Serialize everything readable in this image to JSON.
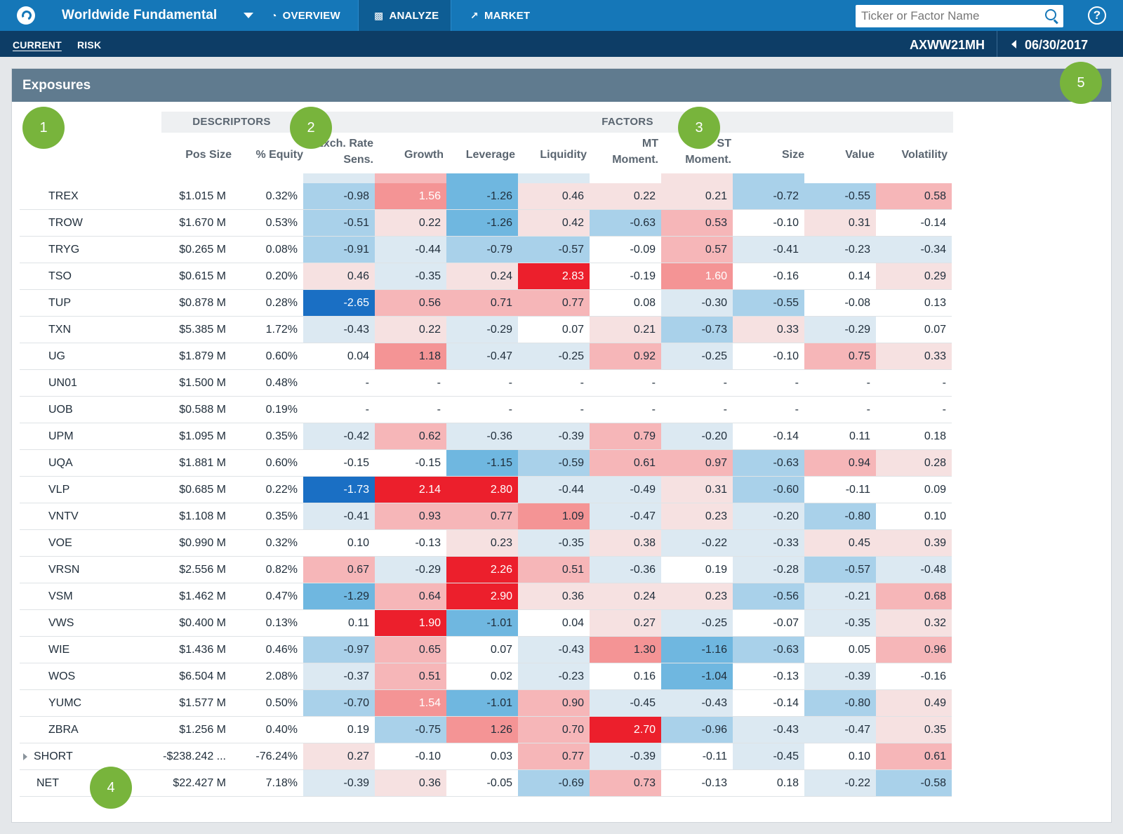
{
  "app": {
    "title": "Worldwide Fundamental",
    "nav": [
      {
        "label": "OVERVIEW",
        "icon": "dashboard-icon"
      },
      {
        "label": "ANALYZE",
        "icon": "bar-chart-icon"
      },
      {
        "label": "MARKET",
        "icon": "line-chart-icon"
      }
    ],
    "search_placeholder": "Ticker or Factor Name",
    "help_label": "?"
  },
  "subnav": {
    "tabs": [
      "CURRENT",
      "RISK"
    ],
    "account": "AXWW21MH",
    "date": "06/30/2017"
  },
  "panel": {
    "title": "Exposures",
    "groups": {
      "descriptors": "DESCRIPTORS",
      "factors": "FACTORS"
    },
    "columns": [
      "",
      "Pos Size",
      "% Equity",
      "Exch. Rate Sens.",
      "Growth",
      "Leverage",
      "Liquidity",
      "MT Moment.",
      "ST Moment.",
      "Size",
      "Value",
      "Volatility"
    ],
    "callouts": [
      "1",
      "2",
      "3",
      "4",
      "5"
    ]
  },
  "scale": {
    "neg_strong": "#1a6fc4",
    "neg_mid": "#6fb7e0",
    "neg_light": "#a9d1ea",
    "neg_faint": "#dce9f2",
    "pos_faint": "#f6e1e1",
    "pos_light": "#f6b6b8",
    "pos_mid": "#f49495",
    "pos_strong": "#ec1f2c"
  },
  "rows": [
    {
      "name": "TREX",
      "pos": "$1.015 M",
      "eq": "0.32%",
      "v": [
        "-0.98",
        "1.56",
        "-1.26",
        "0.46",
        "0.22",
        "0.21",
        "-0.72",
        "-0.55",
        "0.58"
      ]
    },
    {
      "name": "TROW",
      "pos": "$1.670 M",
      "eq": "0.53%",
      "v": [
        "-0.51",
        "0.22",
        "-1.26",
        "0.42",
        "-0.63",
        "0.53",
        "-0.10",
        "0.31",
        "-0.14"
      ]
    },
    {
      "name": "TRYG",
      "pos": "$0.265 M",
      "eq": "0.08%",
      "v": [
        "-0.91",
        "-0.44",
        "-0.79",
        "-0.57",
        "-0.09",
        "0.57",
        "-0.41",
        "-0.23",
        "-0.34"
      ]
    },
    {
      "name": "TSO",
      "pos": "$0.615 M",
      "eq": "0.20%",
      "v": [
        "0.46",
        "-0.35",
        "0.24",
        "2.83",
        "-0.19",
        "1.60",
        "-0.16",
        "0.14",
        "0.29"
      ]
    },
    {
      "name": "TUP",
      "pos": "$0.878 M",
      "eq": "0.28%",
      "v": [
        "-2.65",
        "0.56",
        "0.71",
        "0.77",
        "0.08",
        "-0.30",
        "-0.55",
        "-0.08",
        "0.13"
      ]
    },
    {
      "name": "TXN",
      "pos": "$5.385 M",
      "eq": "1.72%",
      "v": [
        "-0.43",
        "0.22",
        "-0.29",
        "0.07",
        "0.21",
        "-0.73",
        "0.33",
        "-0.29",
        "0.07"
      ]
    },
    {
      "name": "UG",
      "pos": "$1.879 M",
      "eq": "0.60%",
      "v": [
        "0.04",
        "1.18",
        "-0.47",
        "-0.25",
        "0.92",
        "-0.25",
        "-0.10",
        "0.75",
        "0.33"
      ]
    },
    {
      "name": "UN01",
      "pos": "$1.500 M",
      "eq": "0.48%",
      "v": [
        "-",
        "-",
        "-",
        "-",
        "-",
        "-",
        "-",
        "-",
        "-"
      ]
    },
    {
      "name": "UOB",
      "pos": "$0.588 M",
      "eq": "0.19%",
      "v": [
        "-",
        "-",
        "-",
        "-",
        "-",
        "-",
        "-",
        "-",
        "-"
      ]
    },
    {
      "name": "UPM",
      "pos": "$1.095 M",
      "eq": "0.35%",
      "v": [
        "-0.42",
        "0.62",
        "-0.36",
        "-0.39",
        "0.79",
        "-0.20",
        "-0.14",
        "0.11",
        "0.18"
      ]
    },
    {
      "name": "UQA",
      "pos": "$1.881 M",
      "eq": "0.60%",
      "v": [
        "-0.15",
        "-0.15",
        "-1.15",
        "-0.59",
        "0.61",
        "0.97",
        "-0.63",
        "0.94",
        "0.28"
      ]
    },
    {
      "name": "VLP",
      "pos": "$0.685 M",
      "eq": "0.22%",
      "v": [
        "-1.73",
        "2.14",
        "2.80",
        "-0.44",
        "-0.49",
        "0.31",
        "-0.60",
        "-0.11",
        "0.09"
      ]
    },
    {
      "name": "VNTV",
      "pos": "$1.108 M",
      "eq": "0.35%",
      "v": [
        "-0.41",
        "0.93",
        "0.77",
        "1.09",
        "-0.47",
        "0.23",
        "-0.20",
        "-0.80",
        "0.10"
      ]
    },
    {
      "name": "VOE",
      "pos": "$0.990 M",
      "eq": "0.32%",
      "v": [
        "0.10",
        "-0.13",
        "0.23",
        "-0.35",
        "0.38",
        "-0.22",
        "-0.33",
        "0.45",
        "0.39"
      ]
    },
    {
      "name": "VRSN",
      "pos": "$2.556 M",
      "eq": "0.82%",
      "v": [
        "0.67",
        "-0.29",
        "2.26",
        "0.51",
        "-0.36",
        "0.19",
        "-0.28",
        "-0.57",
        "-0.48"
      ]
    },
    {
      "name": "VSM",
      "pos": "$1.462 M",
      "eq": "0.47%",
      "v": [
        "-1.29",
        "0.64",
        "2.90",
        "0.36",
        "0.24",
        "0.23",
        "-0.56",
        "-0.21",
        "0.68"
      ]
    },
    {
      "name": "VWS",
      "pos": "$0.400 M",
      "eq": "0.13%",
      "v": [
        "0.11",
        "1.90",
        "-1.01",
        "0.04",
        "0.27",
        "-0.25",
        "-0.07",
        "-0.35",
        "0.32"
      ]
    },
    {
      "name": "WIE",
      "pos": "$1.436 M",
      "eq": "0.46%",
      "v": [
        "-0.97",
        "0.65",
        "0.07",
        "-0.43",
        "1.30",
        "-1.16",
        "-0.63",
        "0.05",
        "0.96"
      ]
    },
    {
      "name": "WOS",
      "pos": "$6.504 M",
      "eq": "2.08%",
      "v": [
        "-0.37",
        "0.51",
        "0.02",
        "-0.23",
        "0.16",
        "-1.04",
        "-0.13",
        "-0.39",
        "-0.16"
      ]
    },
    {
      "name": "YUMC",
      "pos": "$1.577 M",
      "eq": "0.50%",
      "v": [
        "-0.70",
        "1.54",
        "-1.01",
        "0.90",
        "-0.45",
        "-0.43",
        "-0.14",
        "-0.80",
        "0.49"
      ]
    },
    {
      "name": "ZBRA",
      "pos": "$1.256 M",
      "eq": "0.40%",
      "v": [
        "0.19",
        "-0.75",
        "1.26",
        "0.70",
        "2.70",
        "-0.96",
        "-0.43",
        "-0.47",
        "0.35"
      ]
    },
    {
      "name": "SHORT",
      "pos": "-$238.242 ...",
      "eq": "-76.24%",
      "v": [
        "0.27",
        "-0.10",
        "0.03",
        "0.77",
        "-0.39",
        "-0.11",
        "-0.45",
        "0.10",
        "0.61"
      ],
      "kind": "short"
    },
    {
      "name": "NET",
      "pos": "$22.427 M",
      "eq": "7.18%",
      "v": [
        "-0.39",
        "0.36",
        "-0.05",
        "-0.69",
        "0.73",
        "-0.13",
        "0.18",
        "-0.22",
        "-0.58"
      ],
      "kind": "net"
    }
  ]
}
